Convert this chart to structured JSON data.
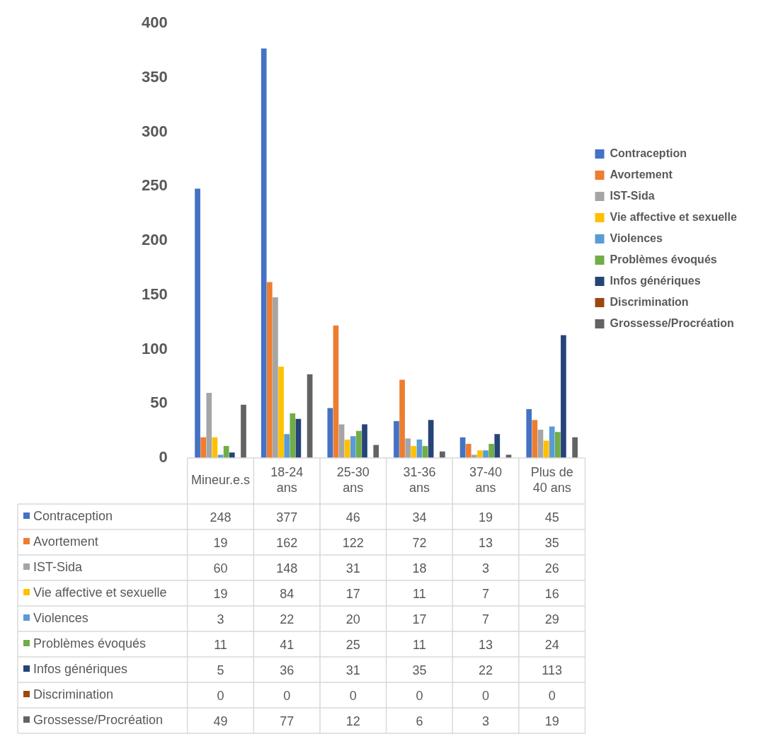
{
  "chart_data": {
    "type": "bar",
    "categories": [
      "Mineur.e.s",
      "18-24 ans",
      "25-30 ans",
      "31-36 ans",
      "37-40 ans",
      "Plus de 40 ans"
    ],
    "series": [
      {
        "name": "Contraception",
        "color": "#4472c4",
        "values": [
          248,
          377,
          46,
          34,
          19,
          45
        ]
      },
      {
        "name": "Avortement",
        "color": "#ed7d31",
        "values": [
          19,
          162,
          122,
          72,
          13,
          35
        ]
      },
      {
        "name": "IST-Sida",
        "color": "#a5a5a5",
        "values": [
          60,
          148,
          31,
          18,
          3,
          26
        ]
      },
      {
        "name": "Vie affective et sexuelle",
        "color": "#ffc000",
        "values": [
          19,
          84,
          17,
          11,
          7,
          16
        ]
      },
      {
        "name": "Violences",
        "color": "#5b9bd5",
        "values": [
          3,
          22,
          20,
          17,
          7,
          29
        ]
      },
      {
        "name": "Problèmes évoqués",
        "color": "#70ad47",
        "values": [
          11,
          41,
          25,
          11,
          13,
          24
        ]
      },
      {
        "name": "Infos génériques",
        "color": "#264478",
        "values": [
          5,
          36,
          31,
          35,
          22,
          113
        ]
      },
      {
        "name": "Discrimination",
        "color": "#9e480e",
        "values": [
          0,
          0,
          0,
          0,
          0,
          0
        ]
      },
      {
        "name": "Grossesse/Procréation",
        "color": "#636363",
        "values": [
          49,
          77,
          12,
          6,
          3,
          19
        ]
      }
    ],
    "ylim": [
      0,
      400
    ],
    "yticks": [
      0,
      50,
      100,
      150,
      200,
      250,
      300,
      350,
      400
    ],
    "grid": false,
    "legend": "right",
    "data_labels": true
  }
}
